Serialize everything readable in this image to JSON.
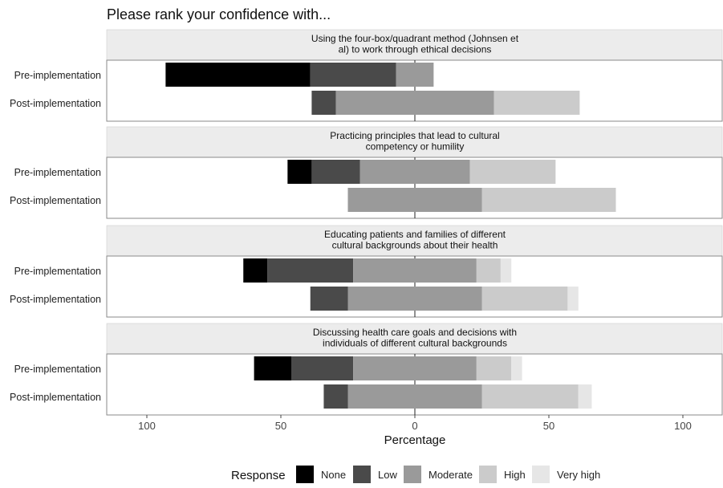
{
  "chart_data": {
    "type": "bar",
    "subtype": "diverging-stacked-horizontal",
    "title": "Please rank your confidence with...",
    "xlabel": "Percentage",
    "ylabel": "",
    "xlim": [
      -115,
      115
    ],
    "x_ticks": [
      -100,
      -50,
      0,
      50,
      100
    ],
    "x_tick_labels": [
      "100",
      "50",
      "0",
      "50",
      "100"
    ],
    "grid": false,
    "legend": {
      "title": "Response",
      "position": "bottom",
      "entries": [
        {
          "label": "None",
          "color": "#000000"
        },
        {
          "label": "Low",
          "color": "#4a4a4a"
        },
        {
          "label": "Moderate",
          "color": "#9a9a9a"
        },
        {
          "label": "High",
          "color": "#cbcbcb"
        },
        {
          "label": "Very high",
          "color": "#e6e6e6"
        }
      ]
    },
    "centering": "Moderate split evenly across zero",
    "row_labels": [
      "Pre-implementation",
      "Post-implementation"
    ],
    "panels": [
      {
        "strip_lines": [
          "Using the four-box/quadrant method (Johnsen et",
          "al) to work through ethical decisions"
        ],
        "rows": [
          {
            "label": "Pre-implementation",
            "values": {
              "None": 54,
              "Low": 32,
              "Moderate": 14,
              "High": 0,
              "Very high": 0
            }
          },
          {
            "label": "Post-implementation",
            "values": {
              "None": 0,
              "Low": 9,
              "Moderate": 59,
              "High": 32,
              "Very high": 0
            }
          }
        ]
      },
      {
        "strip_lines": [
          "Practicing principles that lead to cultural",
          "competency or humility"
        ],
        "rows": [
          {
            "label": "Pre-implementation",
            "values": {
              "None": 9,
              "Low": 18,
              "Moderate": 41,
              "High": 32,
              "Very high": 0
            }
          },
          {
            "label": "Post-implementation",
            "values": {
              "None": 0,
              "Low": 0,
              "Moderate": 50,
              "High": 50,
              "Very high": 0
            }
          }
        ]
      },
      {
        "strip_lines": [
          "Educating patients and families of different",
          "cultural backgrounds about their health"
        ],
        "rows": [
          {
            "label": "Pre-implementation",
            "values": {
              "None": 9,
              "Low": 32,
              "Moderate": 46,
              "High": 9,
              "Very high": 4
            }
          },
          {
            "label": "Post-implementation",
            "values": {
              "None": 0,
              "Low": 14,
              "Moderate": 50,
              "High": 32,
              "Very high": 4
            }
          }
        ]
      },
      {
        "strip_lines": [
          "Discussing health care goals and decisions with",
          "individuals of different cultural backgrounds"
        ],
        "rows": [
          {
            "label": "Pre-implementation",
            "values": {
              "None": 14,
              "Low": 23,
              "Moderate": 46,
              "High": 13,
              "Very high": 4
            }
          },
          {
            "label": "Post-implementation",
            "values": {
              "None": 0,
              "Low": 9,
              "Moderate": 50,
              "High": 36,
              "Very high": 5
            }
          }
        ]
      }
    ]
  }
}
